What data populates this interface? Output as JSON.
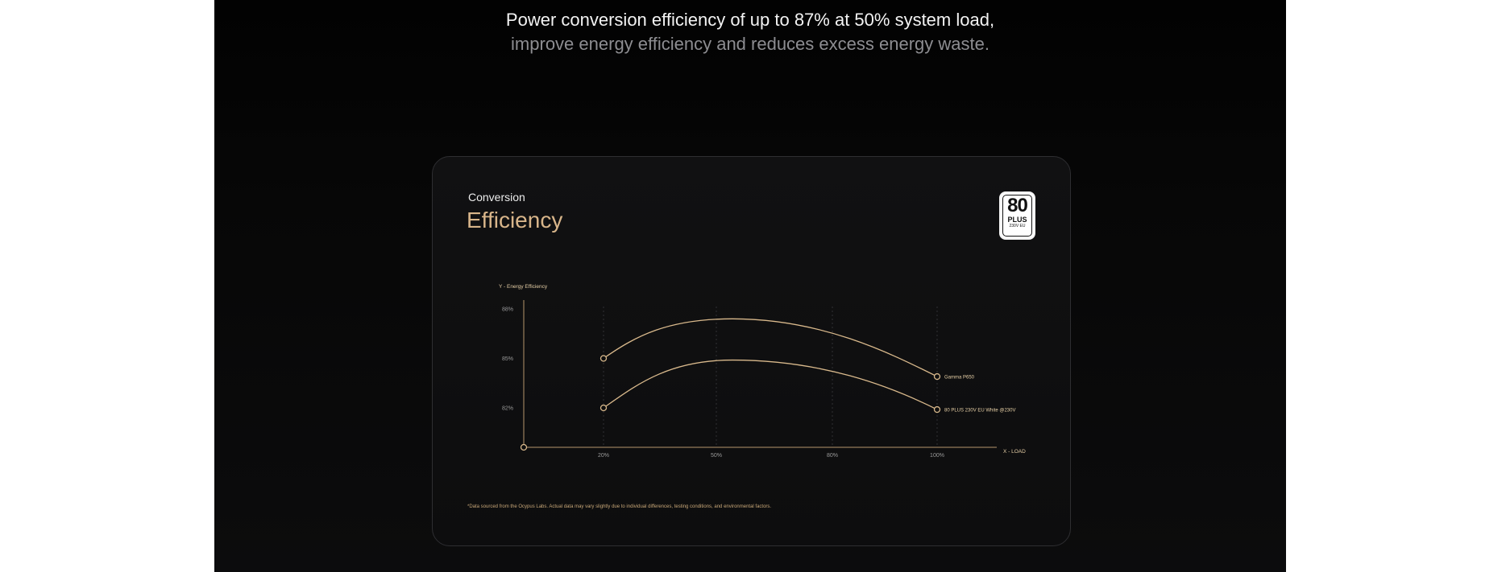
{
  "headline": {
    "line1": "Power conversion efficiency of up to 87% at 50% system load,",
    "line2": "improve energy efficiency and reduces excess energy waste."
  },
  "card": {
    "eyebrow": "Conversion",
    "title": "Efficiency",
    "badge": {
      "main": "80",
      "plus": "PLUS",
      "sub": "230V EU"
    },
    "footnote": "*Data sourced from the Ocypus Labs. Actual data may vary slightly due to individual differences, testing conditions, and environmental factors."
  },
  "colors": {
    "accent": "#d8b58a",
    "line": "#d9b98c",
    "axis": "#b6966c",
    "background": "#0c0c0d"
  },
  "chart_data": {
    "type": "line",
    "xlabel": "X - LOAD",
    "ylabel": "Y - Energy Efficiency",
    "x_ticks": [
      "20%",
      "50%",
      "80%",
      "100%"
    ],
    "y_ticks": [
      "88%",
      "85%",
      "82%"
    ],
    "ylim": [
      79.3,
      88.5
    ],
    "grid": "vertical dashed",
    "series": [
      {
        "name": "Gamma P650",
        "x": [
          20,
          50,
          100
        ],
        "values": [
          85.0,
          87.4,
          83.9
        ],
        "labeled": true
      },
      {
        "name": "80 PLUS 230V EU White @230V",
        "x": [
          20,
          50,
          100
        ],
        "values": [
          82.0,
          84.9,
          81.9
        ],
        "labeled": true
      }
    ]
  }
}
